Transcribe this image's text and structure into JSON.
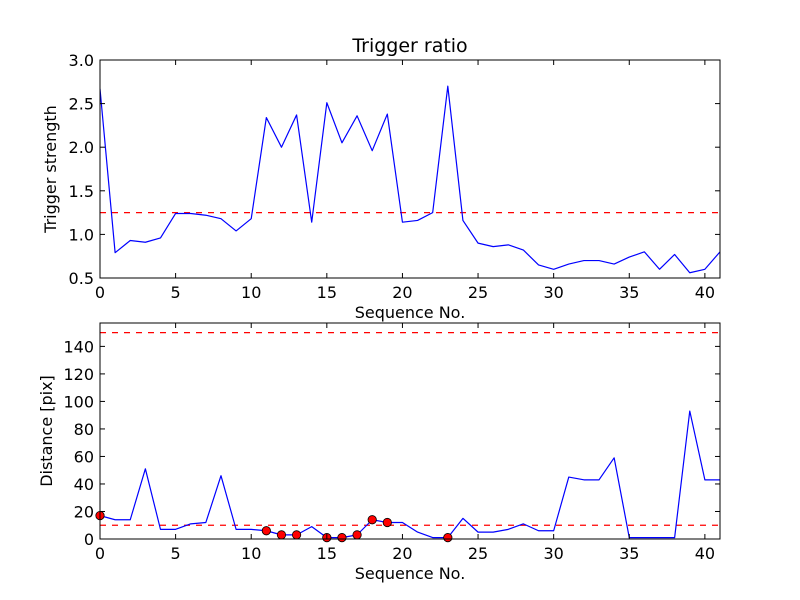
{
  "chart_data": [
    {
      "type": "line",
      "title": "Trigger ratio",
      "xlabel": "Sequence No.",
      "ylabel": "Trigger strength",
      "xlim": [
        0,
        41
      ],
      "ylim": [
        0.5,
        3.0
      ],
      "xticks": [
        0,
        5,
        10,
        15,
        20,
        25,
        30,
        35,
        40
      ],
      "yticks": [
        0.5,
        1.0,
        1.5,
        2.0,
        2.5,
        3.0
      ],
      "xtick_labels": [
        "0",
        "5",
        "10",
        "15",
        "20",
        "25",
        "30",
        "35",
        "40"
      ],
      "ytick_labels": [
        "0.5",
        "1.0",
        "1.5",
        "2.0",
        "2.5",
        "3.0"
      ],
      "grid": false,
      "series": [
        {
          "color": "#0000ff",
          "x": [
            0,
            1,
            2,
            3,
            4,
            5,
            6,
            7,
            8,
            9,
            10,
            11,
            12,
            13,
            14,
            15,
            16,
            17,
            18,
            19,
            20,
            21,
            22,
            23,
            24,
            25,
            26,
            27,
            28,
            29,
            30,
            31,
            32,
            33,
            34,
            35,
            36,
            37,
            38,
            39,
            40,
            41
          ],
          "values": [
            2.67,
            0.79,
            0.93,
            0.91,
            0.96,
            1.24,
            1.24,
            1.22,
            1.18,
            1.04,
            1.18,
            2.34,
            2.0,
            2.37,
            1.14,
            2.51,
            2.05,
            2.36,
            1.96,
            2.38,
            1.14,
            1.16,
            1.25,
            2.7,
            1.16,
            0.9,
            0.86,
            0.88,
            0.82,
            0.65,
            0.6,
            0.66,
            0.7,
            0.7,
            0.66,
            0.74,
            0.8,
            0.6,
            0.77,
            0.56,
            0.6,
            0.8
          ]
        }
      ],
      "hlines": [
        {
          "y": 1.25,
          "color": "#ff0000",
          "style": "dashed"
        }
      ]
    },
    {
      "type": "line",
      "title": "",
      "xlabel": "Sequence No.",
      "ylabel": "Distance [pix]",
      "xlim": [
        0,
        41
      ],
      "ylim": [
        0,
        157
      ],
      "xticks": [
        0,
        5,
        10,
        15,
        20,
        25,
        30,
        35,
        40
      ],
      "yticks": [
        0,
        20,
        40,
        60,
        80,
        100,
        120,
        140
      ],
      "xtick_labels": [
        "0",
        "5",
        "10",
        "15",
        "20",
        "25",
        "30",
        "35",
        "40"
      ],
      "ytick_labels": [
        "0",
        "20",
        "40",
        "60",
        "80",
        "100",
        "120",
        "140"
      ],
      "grid": false,
      "series": [
        {
          "color": "#0000ff",
          "x": [
            0,
            1,
            2,
            3,
            4,
            5,
            6,
            7,
            8,
            9,
            10,
            11,
            12,
            13,
            14,
            15,
            16,
            17,
            18,
            19,
            20,
            21,
            22,
            23,
            24,
            25,
            26,
            27,
            28,
            29,
            30,
            31,
            32,
            33,
            34,
            35,
            36,
            37,
            38,
            39,
            40,
            41
          ],
          "values": [
            17,
            14,
            14,
            51,
            7,
            7,
            11,
            12,
            46,
            7,
            7,
            6,
            3,
            3,
            9,
            1,
            1,
            3,
            14,
            12,
            12,
            5,
            1,
            1,
            15,
            5,
            5,
            7,
            11,
            6,
            6,
            45,
            43,
            43,
            59,
            1,
            1,
            1,
            1,
            93,
            43,
            43
          ]
        }
      ],
      "markers": {
        "color": "#ff0000",
        "x": [
          0,
          11,
          12,
          13,
          15,
          16,
          17,
          18,
          19,
          23
        ],
        "y": [
          17,
          6,
          3,
          3,
          1,
          1,
          3,
          14,
          12,
          1
        ]
      },
      "hlines": [
        {
          "y": 10,
          "color": "#ff0000",
          "style": "dashed"
        },
        {
          "y": 150,
          "color": "#ff0000",
          "style": "dashed"
        }
      ]
    }
  ]
}
